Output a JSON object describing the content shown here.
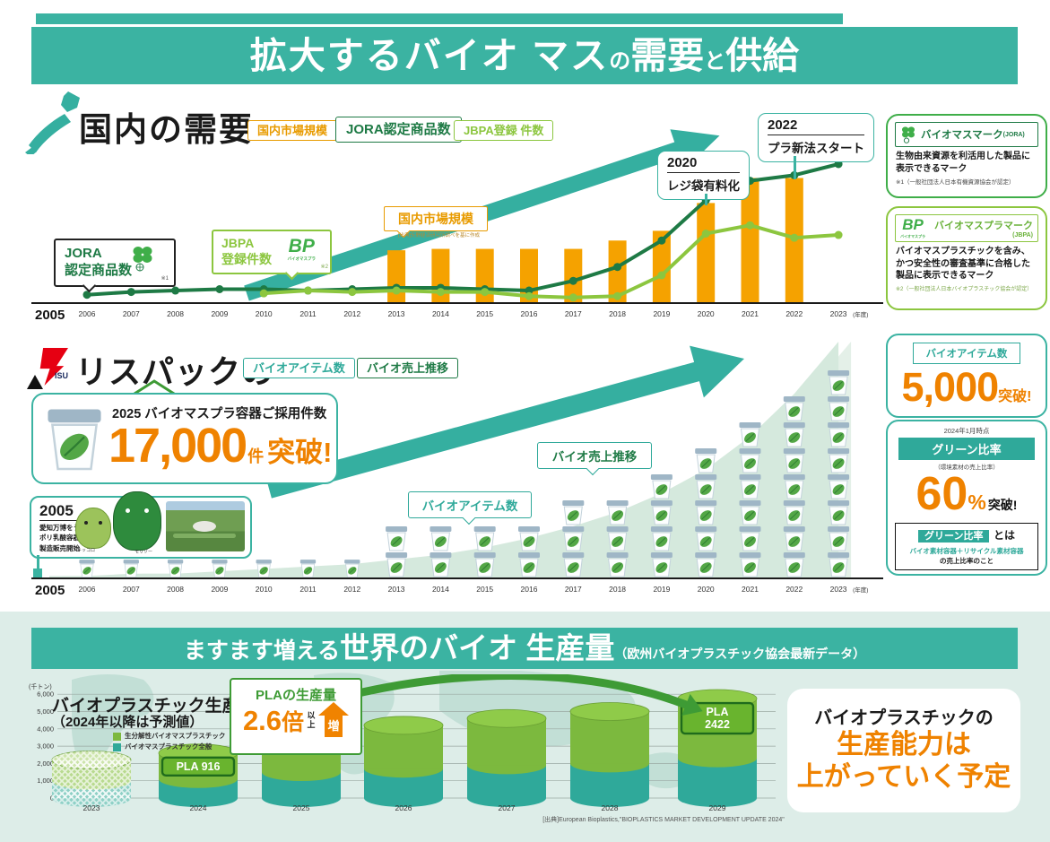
{
  "header": {
    "title_parts": [
      "拡大するバイオ マス",
      "の",
      "需要",
      "と",
      "供給"
    ]
  },
  "section_domestic": {
    "title": "国内の需要",
    "legend": [
      {
        "label": "国内市場規模",
        "color": "#E89B00"
      },
      {
        "label": "JORA認定商品数",
        "color": "#1E7A45"
      },
      {
        "label": "JBPA登録 件数",
        "color": "#8CC63F"
      }
    ],
    "market_callout": {
      "label": "国内市場規模",
      "source_note": "[出典]矢野経済研究所調べを基に作成"
    },
    "jora_callout": {
      "line1": "JORA",
      "line2": "認定商品数",
      "note": "※1"
    },
    "jbpa_callout": {
      "line1": "JBPA",
      "line2": "登録件数",
      "logo": "BP",
      "logo_caption": "バイオマスプラ",
      "note": "※2"
    },
    "event_2020": {
      "year": "2020",
      "label": "レジ袋有料化"
    },
    "event_2022": {
      "year": "2022",
      "label": "プラ新法スタート"
    },
    "jora_info": {
      "mark_name": "バイオマスマーク",
      "mark_org": "(JORA)",
      "desc": "生物由来資源を利活用した製品に表示できるマーク",
      "note": "※1（一般社団法人日本有機資源協会が認定）"
    },
    "jbpa_info": {
      "logo": "BP",
      "logo_caption": "バイオマスプラ",
      "mark_name": "バイオマスプラマーク",
      "mark_org": "(JBPA)",
      "desc": "バイオマスプラスチックを含み、かつ安全性の審査基準に合格した製品に表示できるマーク",
      "note": "※2（一般社団法人日本バイオプラスチック協会が認定）"
    }
  },
  "section_risupack": {
    "logo_text": "ISU",
    "title": "リスパックの",
    "legend": [
      {
        "label": "バイオアイテム数",
        "color": "#2FA99A"
      },
      {
        "label": "バイオ売上推移",
        "color": "#1E7A45"
      }
    ],
    "adoption_box": {
      "caption": "2025 バイオマスプラ容器ご採用件数",
      "number": "17,000",
      "unit": "件",
      "suffix": "突破!"
    },
    "history_box": {
      "year": "2005",
      "desc1": "愛知万博をうけて",
      "desc2": "ポリ乳酸容器",
      "desc3": "製造販売開始",
      "mascot_left": "キッコロ",
      "mascot_right": "モリゾー"
    },
    "items_callout": "バイオアイテム数",
    "sales_callout": "バイオ売上推移",
    "items_box": {
      "header": "バイオアイテム数",
      "number": "5,000",
      "suffix": "突破!"
    },
    "green_box": {
      "asof": "2024年1月時点",
      "header": "グリーン比率",
      "sub": "（環境素材の売上比率）",
      "number": "60",
      "unit": "%",
      "suffix": "突破!",
      "def_term": "グリーン比率",
      "def_tail": "とは",
      "def_line1": "バイオ素材容器＋リサイクル素材容器",
      "def_line2": "の売上比率のこと"
    }
  },
  "section_world": {
    "banner": {
      "lead": "ますます増える",
      "main": "世界のバイオ 生産量",
      "note": "（欧州バイオプラスチック協会最新データ）"
    },
    "chart_title": "バイオプラスチック生産能力",
    "chart_subtitle": "（2024年以降は予測値）",
    "axis_unit": "(千トン)",
    "legend": [
      {
        "label": "生分解性バイオマスプラスチック",
        "color": "#7CB93E"
      },
      {
        "label": "バイオマスプラスチック全般",
        "color": "#2FA99A"
      }
    ],
    "pla_callout": {
      "label": "PLAの生産量",
      "number": "2.6",
      "unit": "倍",
      "qualifier": "以上",
      "arrow_text": "増"
    },
    "right_box": {
      "line1": "バイオプラスチックの",
      "line2": "生産能力は",
      "line3": "上がっていく予定"
    },
    "source": "[出典]European Bioplastics,\"BIOPLASTICS MARKET DEVELOPMENT UPDATE 2024\""
  },
  "chart_data": [
    {
      "id": "domestic-demand",
      "type": "bar",
      "note": "y-axis not labeled in source; values are relative heights 0-105",
      "x": [
        "2005",
        "2006",
        "2007",
        "2008",
        "2009",
        "2010",
        "2011",
        "2012",
        "2013",
        "2014",
        "2015",
        "2016",
        "2017",
        "2018",
        "2019",
        "2020",
        "2021",
        "2022",
        "2023"
      ],
      "x_suffix": "(年度)",
      "series": [
        {
          "name": "国内市場規模",
          "type": "bar",
          "color": "#F5A200",
          "values": [
            null,
            null,
            null,
            null,
            null,
            null,
            null,
            null,
            38,
            39,
            39,
            39,
            39,
            45,
            52,
            72,
            90,
            90,
            null
          ]
        },
        {
          "name": "JORA認定商品数",
          "type": "line",
          "color": "#1E7A45",
          "values": [
            null,
            6,
            8,
            9,
            10,
            10,
            9,
            10,
            11,
            11,
            10,
            9,
            16,
            26,
            45,
            74,
            88,
            92,
            100
          ]
        },
        {
          "name": "JBPA登録件数",
          "type": "line",
          "color": "#8CC63F",
          "values": [
            null,
            null,
            null,
            null,
            null,
            7,
            9,
            8,
            9,
            8,
            8,
            5,
            4,
            5,
            20,
            50,
            56,
            47,
            49
          ]
        }
      ]
    },
    {
      "id": "risupack-bio",
      "type": "area",
      "note": "values are relative heights 0-100; cup pictograms = バイオアイテム数",
      "x": [
        "2005",
        "2006",
        "2007",
        "2008",
        "2009",
        "2010",
        "2011",
        "2012",
        "2013",
        "2014",
        "2015",
        "2016",
        "2017",
        "2018",
        "2019",
        "2020",
        "2021",
        "2022",
        "2023"
      ],
      "x_suffix": "(年度)",
      "area_series": {
        "name": "バイオ売上推移",
        "color": "#D5E9DD",
        "values": [
          1,
          1,
          2,
          2,
          3,
          4,
          5,
          6,
          8,
          10,
          13,
          17,
          22,
          28,
          36,
          46,
          60,
          78,
          100
        ]
      },
      "pictogram_series": {
        "name": "バイオアイテム数",
        "icon": "bio-cup",
        "counts": [
          0,
          1,
          1,
          1,
          1,
          1,
          1,
          1,
          2,
          2,
          2,
          2,
          3,
          3,
          4,
          5,
          6,
          7,
          8
        ]
      }
    },
    {
      "id": "world-bioplastics-capacity",
      "type": "bar",
      "unit": "千トン",
      "categories": [
        "2023",
        "2024",
        "2025",
        "2026",
        "2027",
        "2028",
        "2029"
      ],
      "forecast_from": "2024",
      "hatched": [
        "2023"
      ],
      "series": [
        {
          "name": "バイオマスプラスチック全般",
          "color": "#2FA99A",
          "values": [
            1000,
            1100,
            1500,
            1700,
            1900,
            2000,
            2300
          ]
        },
        {
          "name": "生分解性バイオマスプラスチック",
          "color": "#7CB93E",
          "values": [
            1200,
            1500,
            2100,
            2500,
            2700,
            3000,
            3450
          ]
        }
      ],
      "totals": [
        2200,
        2600,
        3600,
        4200,
        4600,
        5000,
        5750
      ],
      "labels": {
        "2024": [
          "PLA 916"
        ],
        "2029": [
          "PLA",
          "2422"
        ]
      },
      "ylim": [
        0,
        6000
      ],
      "yticks": [
        "0",
        "1,000",
        "2,000",
        "3,000",
        "4,000",
        "5,000",
        "6,000"
      ]
    }
  ]
}
